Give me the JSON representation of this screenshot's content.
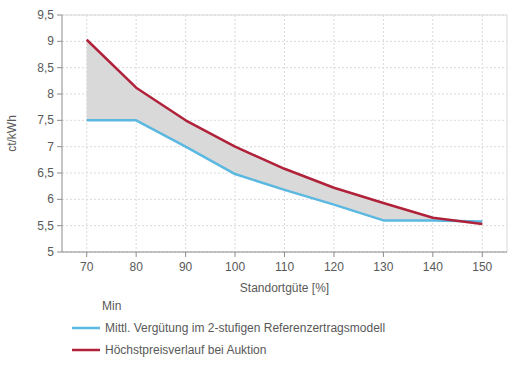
{
  "chart_data": {
    "type": "line",
    "x_label": "Standortgüte [%]",
    "y_label": "ct/kWh",
    "x": [
      70,
      80,
      90,
      100,
      110,
      120,
      130,
      140,
      150
    ],
    "xlim": [
      65,
      155
    ],
    "xticks": [
      70,
      80,
      90,
      100,
      110,
      120,
      130,
      140,
      150
    ],
    "ylim": [
      5,
      9.5
    ],
    "yticks": [
      5,
      {
        "value": 5.5,
        "label": "5,5"
      },
      6,
      {
        "value": 6.5,
        "label": "6,5"
      },
      7,
      {
        "value": 7.5,
        "label": "7,5"
      },
      8,
      {
        "value": 8.5,
        "label": "8,5"
      },
      9,
      {
        "value": 9.5,
        "label": "9,5"
      }
    ],
    "grid": true,
    "legend": "bottom-left",
    "series": [
      {
        "name": "Min",
        "type": "band",
        "color": "#d9d9d9",
        "values": [
          7.5,
          7.5,
          7.0,
          6.48,
          6.18,
          5.9,
          5.6,
          5.6,
          5.6
        ],
        "upper": [
          9.03,
          8.12,
          7.5,
          7.0,
          6.58,
          6.22,
          5.93,
          5.65,
          5.53
        ]
      },
      {
        "name": "Mittl. Vergütung im 2-stufigen Referenzertragsmodell",
        "type": "line",
        "color": "#5bb8e0",
        "values": [
          7.5,
          7.5,
          7.0,
          6.48,
          6.18,
          5.9,
          5.6,
          5.6,
          5.58
        ]
      },
      {
        "name": "Höchstpreisverlauf bei Auktion",
        "type": "line",
        "color": "#b0213a",
        "values": [
          9.03,
          8.12,
          7.5,
          7.0,
          6.58,
          6.22,
          5.93,
          5.65,
          5.53
        ]
      }
    ]
  }
}
